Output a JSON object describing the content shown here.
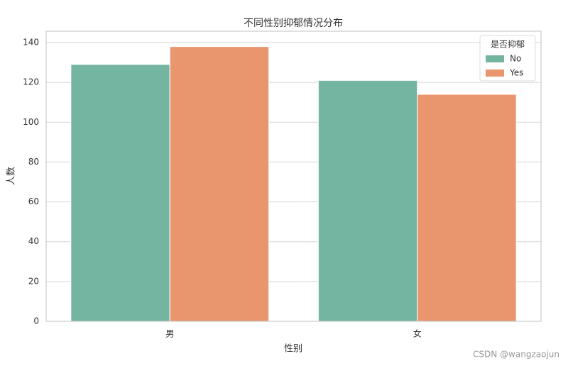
{
  "chart_data": {
    "type": "bar",
    "title": "不同性别抑郁情况分布",
    "x_label": "性别",
    "y_label": "人数",
    "categories": [
      "男",
      "女"
    ],
    "series": [
      {
        "name": "No",
        "color": "#73b5a0",
        "values": [
          129,
          121
        ]
      },
      {
        "name": "Yes",
        "color": "#e9966f",
        "values": [
          138,
          114
        ]
      }
    ],
    "ylim": [
      0,
      145.7
    ],
    "yticks": [
      0,
      20,
      40,
      60,
      80,
      100,
      120,
      140
    ],
    "grid": true,
    "legend_title": "是否抑郁",
    "legend_position": "upper-right",
    "watermark": "CSDN @wangzaojun"
  }
}
